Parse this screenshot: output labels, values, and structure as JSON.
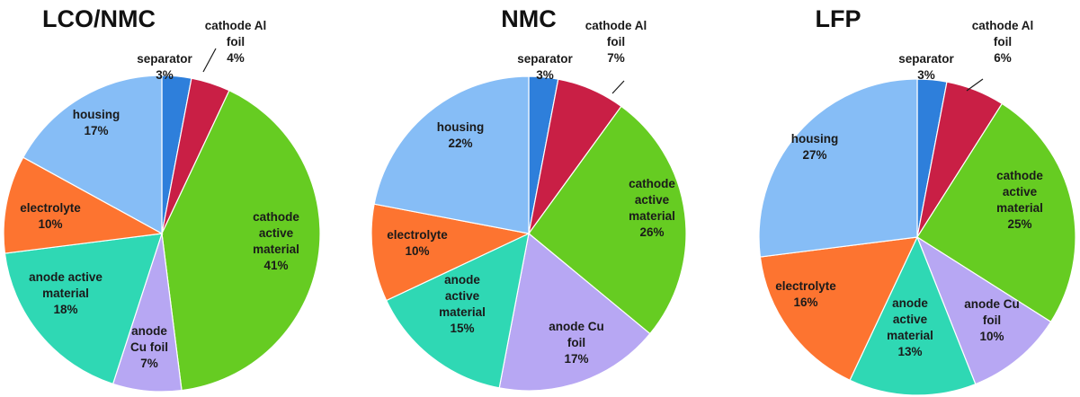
{
  "colors": {
    "separator": "#2e7fdb",
    "cathode_al_foil": "#c91f45",
    "cathode_active_material": "#66cc22",
    "anode_cu_foil": "#b7a7f3",
    "anode_active_material": "#2fd8b4",
    "electrolyte": "#fd7430",
    "housing": "#86bdf6"
  },
  "chart_data": [
    {
      "type": "pie",
      "title": "LCO/NMC",
      "slices": [
        {
          "key": "separator",
          "label": [
            "separator",
            "3%"
          ],
          "value": 3
        },
        {
          "key": "cathode_al_foil",
          "label": [
            "cathode Al",
            "foil",
            "4%"
          ],
          "value": 4
        },
        {
          "key": "cathode_active_material",
          "label": [
            "cathode",
            "active",
            "material",
            "41%"
          ],
          "value": 41
        },
        {
          "key": "anode_cu_foil",
          "label": [
            "anode",
            "Cu foil",
            "7%"
          ],
          "value": 7
        },
        {
          "key": "anode_active_material",
          "label": [
            "anode active",
            "material",
            "18%"
          ],
          "value": 18
        },
        {
          "key": "electrolyte",
          "label": [
            "electrolyte",
            "10%"
          ],
          "value": 10
        },
        {
          "key": "housing",
          "label": [
            "housing",
            "17%"
          ],
          "value": 17
        }
      ]
    },
    {
      "type": "pie",
      "title": "NMC",
      "slices": [
        {
          "key": "separator",
          "label": [
            "separator",
            "3%"
          ],
          "value": 3
        },
        {
          "key": "cathode_al_foil",
          "label": [
            "cathode Al",
            "foil",
            "7%"
          ],
          "value": 7
        },
        {
          "key": "cathode_active_material",
          "label": [
            "cathode",
            "active",
            "material",
            "26%"
          ],
          "value": 26
        },
        {
          "key": "anode_cu_foil",
          "label": [
            "anode Cu",
            "foil",
            "17%"
          ],
          "value": 17
        },
        {
          "key": "anode_active_material",
          "label": [
            "anode",
            "active",
            "material",
            "15%"
          ],
          "value": 15
        },
        {
          "key": "electrolyte",
          "label": [
            "electrolyte",
            "10%"
          ],
          "value": 10
        },
        {
          "key": "housing",
          "label": [
            "housing",
            "22%"
          ],
          "value": 22
        }
      ]
    },
    {
      "type": "pie",
      "title": "LFP",
      "slices": [
        {
          "key": "separator",
          "label": [
            "separator",
            "3%"
          ],
          "value": 3
        },
        {
          "key": "cathode_al_foil",
          "label": [
            "cathode Al",
            "foil",
            "6%"
          ],
          "value": 6
        },
        {
          "key": "cathode_active_material",
          "label": [
            "cathode",
            "active",
            "material",
            "25%"
          ],
          "value": 25
        },
        {
          "key": "anode_cu_foil",
          "label": [
            "anode Cu",
            "foil",
            "10%"
          ],
          "value": 10
        },
        {
          "key": "anode_active_material",
          "label": [
            "anode",
            "active",
            "material",
            "13%"
          ],
          "value": 13
        },
        {
          "key": "electrolyte",
          "label": [
            "electrolyte",
            "16%"
          ],
          "value": 16
        },
        {
          "key": "housing",
          "label": [
            "housing",
            "27%"
          ],
          "value": 27
        }
      ]
    }
  ]
}
